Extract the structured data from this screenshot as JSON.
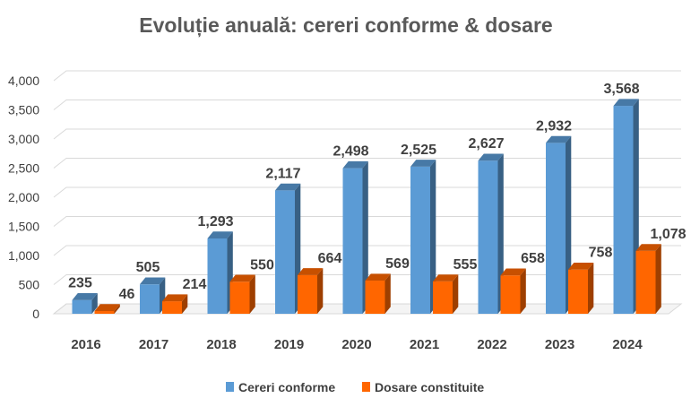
{
  "chart_data": {
    "type": "bar",
    "title": "Evoluție anuală: cereri conforme & dosare",
    "categories": [
      "2016",
      "2017",
      "2018",
      "2019",
      "2020",
      "2021",
      "2022",
      "2023",
      "2024"
    ],
    "series": [
      {
        "name": "Cereri conforme",
        "color": "#5B9BD5",
        "values": [
          235,
          505,
          1293,
          2117,
          2498,
          2525,
          2627,
          2932,
          3568
        ],
        "labels": [
          "235",
          "505",
          "1,293",
          "2,117",
          "2,498",
          "2,525",
          "2,627",
          "2,932",
          "3,568"
        ]
      },
      {
        "name": "Dosare constituite",
        "color": "#FF6600",
        "values": [
          46,
          214,
          550,
          664,
          569,
          555,
          658,
          758,
          1078
        ],
        "labels": [
          "46",
          "214",
          "550",
          "664",
          "569",
          "555",
          "658",
          "758",
          "1,078"
        ]
      }
    ],
    "ylim": [
      0,
      4000
    ],
    "yticks": [
      0,
      500,
      1000,
      1500,
      2000,
      2500,
      3000,
      3500,
      4000
    ],
    "ytick_labels": [
      "0",
      "500",
      "1,000",
      "1,500",
      "2,000",
      "2,500",
      "3,000",
      "3,500",
      "4,000"
    ],
    "xlabel": "",
    "ylabel": "",
    "grid": true,
    "legend": "bottom"
  }
}
